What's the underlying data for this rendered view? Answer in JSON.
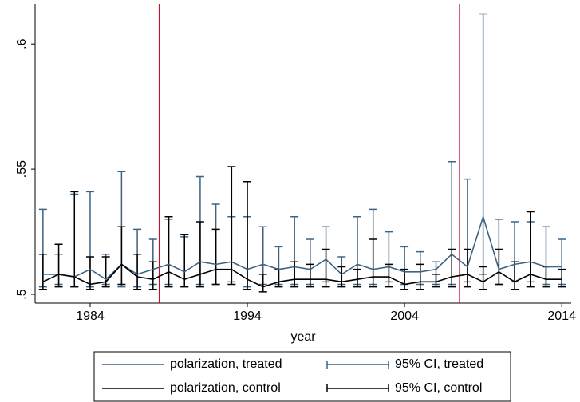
{
  "chart_data": {
    "type": "line",
    "x": [
      1981,
      1982,
      1983,
      1984,
      1985,
      1986,
      1987,
      1988,
      1989,
      1990,
      1991,
      1992,
      1993,
      1994,
      1995,
      1996,
      1997,
      1998,
      1999,
      2000,
      2001,
      2002,
      2003,
      2004,
      2005,
      2006,
      2007,
      2008,
      2009,
      2010,
      2011,
      2012,
      2013,
      2014
    ],
    "series": [
      {
        "name": "polarization, treated",
        "color": "#3e6383",
        "values": [
          0.508,
          0.508,
          0.507,
          0.51,
          0.506,
          0.512,
          0.508,
          0.51,
          0.512,
          0.509,
          0.513,
          0.512,
          0.513,
          0.51,
          0.512,
          0.51,
          0.511,
          0.51,
          0.514,
          0.508,
          0.512,
          0.51,
          0.511,
          0.509,
          0.509,
          0.51,
          0.516,
          0.511,
          0.531,
          0.51,
          0.512,
          0.513,
          0.511,
          0.511
        ]
      },
      {
        "name": "polarization, control",
        "color": "#000000",
        "values": [
          0.505,
          0.508,
          0.507,
          0.504,
          0.505,
          0.512,
          0.507,
          0.506,
          0.509,
          0.506,
          0.508,
          0.51,
          0.51,
          0.506,
          0.503,
          0.505,
          0.506,
          0.506,
          0.506,
          0.505,
          0.506,
          0.507,
          0.507,
          0.504,
          0.505,
          0.505,
          0.507,
          0.508,
          0.505,
          0.509,
          0.505,
          0.508,
          0.506,
          0.506
        ]
      }
    ],
    "ci": [
      {
        "name": "95% CI, treated",
        "color": "#3e6383",
        "low": [
          0.503,
          0.504,
          0.503,
          0.503,
          0.504,
          0.503,
          0.503,
          0.504,
          0.504,
          0.503,
          0.504,
          0.504,
          0.505,
          0.503,
          0.504,
          0.504,
          0.504,
          0.504,
          0.505,
          0.504,
          0.504,
          0.504,
          0.505,
          0.504,
          0.504,
          0.504,
          0.504,
          0.505,
          0.508,
          0.504,
          0.505,
          0.505,
          0.504,
          0.504
        ],
        "high": [
          0.534,
          0.516,
          0.54,
          0.541,
          0.516,
          0.549,
          0.526,
          0.522,
          0.53,
          0.523,
          0.547,
          0.536,
          0.531,
          0.531,
          0.527,
          0.519,
          0.531,
          0.522,
          0.527,
          0.515,
          0.531,
          0.534,
          0.525,
          0.519,
          0.517,
          0.513,
          0.553,
          0.546,
          0.612,
          0.53,
          0.529,
          0.529,
          0.527,
          0.522
        ]
      },
      {
        "name": "95% CI, control",
        "color": "#000000",
        "low": [
          0.502,
          0.503,
          0.503,
          0.502,
          0.503,
          0.504,
          0.502,
          0.502,
          0.503,
          0.503,
          0.503,
          0.504,
          0.504,
          0.502,
          0.501,
          0.503,
          0.503,
          0.503,
          0.503,
          0.503,
          0.503,
          0.503,
          0.503,
          0.502,
          0.502,
          0.503,
          0.503,
          0.503,
          0.502,
          0.504,
          0.502,
          0.503,
          0.503,
          0.503
        ],
        "high": [
          0.516,
          0.52,
          0.541,
          0.515,
          0.515,
          0.527,
          0.516,
          0.513,
          0.531,
          0.524,
          0.529,
          0.526,
          0.551,
          0.545,
          0.508,
          0.51,
          0.513,
          0.512,
          0.518,
          0.511,
          0.51,
          0.522,
          0.512,
          0.51,
          0.512,
          0.508,
          0.518,
          0.518,
          0.511,
          0.518,
          0.513,
          0.533,
          0.511,
          0.51
        ]
      }
    ],
    "reference_lines": [
      {
        "value": 1988.4,
        "color": "#c8102e"
      },
      {
        "value": 2007.5,
        "color": "#c8102e"
      }
    ],
    "x_label": "year",
    "xlim": [
      1980.5,
      2014.6
    ],
    "xticks": [
      1984,
      1994,
      2004,
      2014
    ],
    "ylim": [
      0.4965,
      0.616
    ],
    "yticks": [
      {
        "value": 0.5,
        "label": ".5"
      },
      {
        "value": 0.55,
        "label": ".55"
      },
      {
        "value": 0.6,
        "label": ".6"
      }
    ]
  }
}
